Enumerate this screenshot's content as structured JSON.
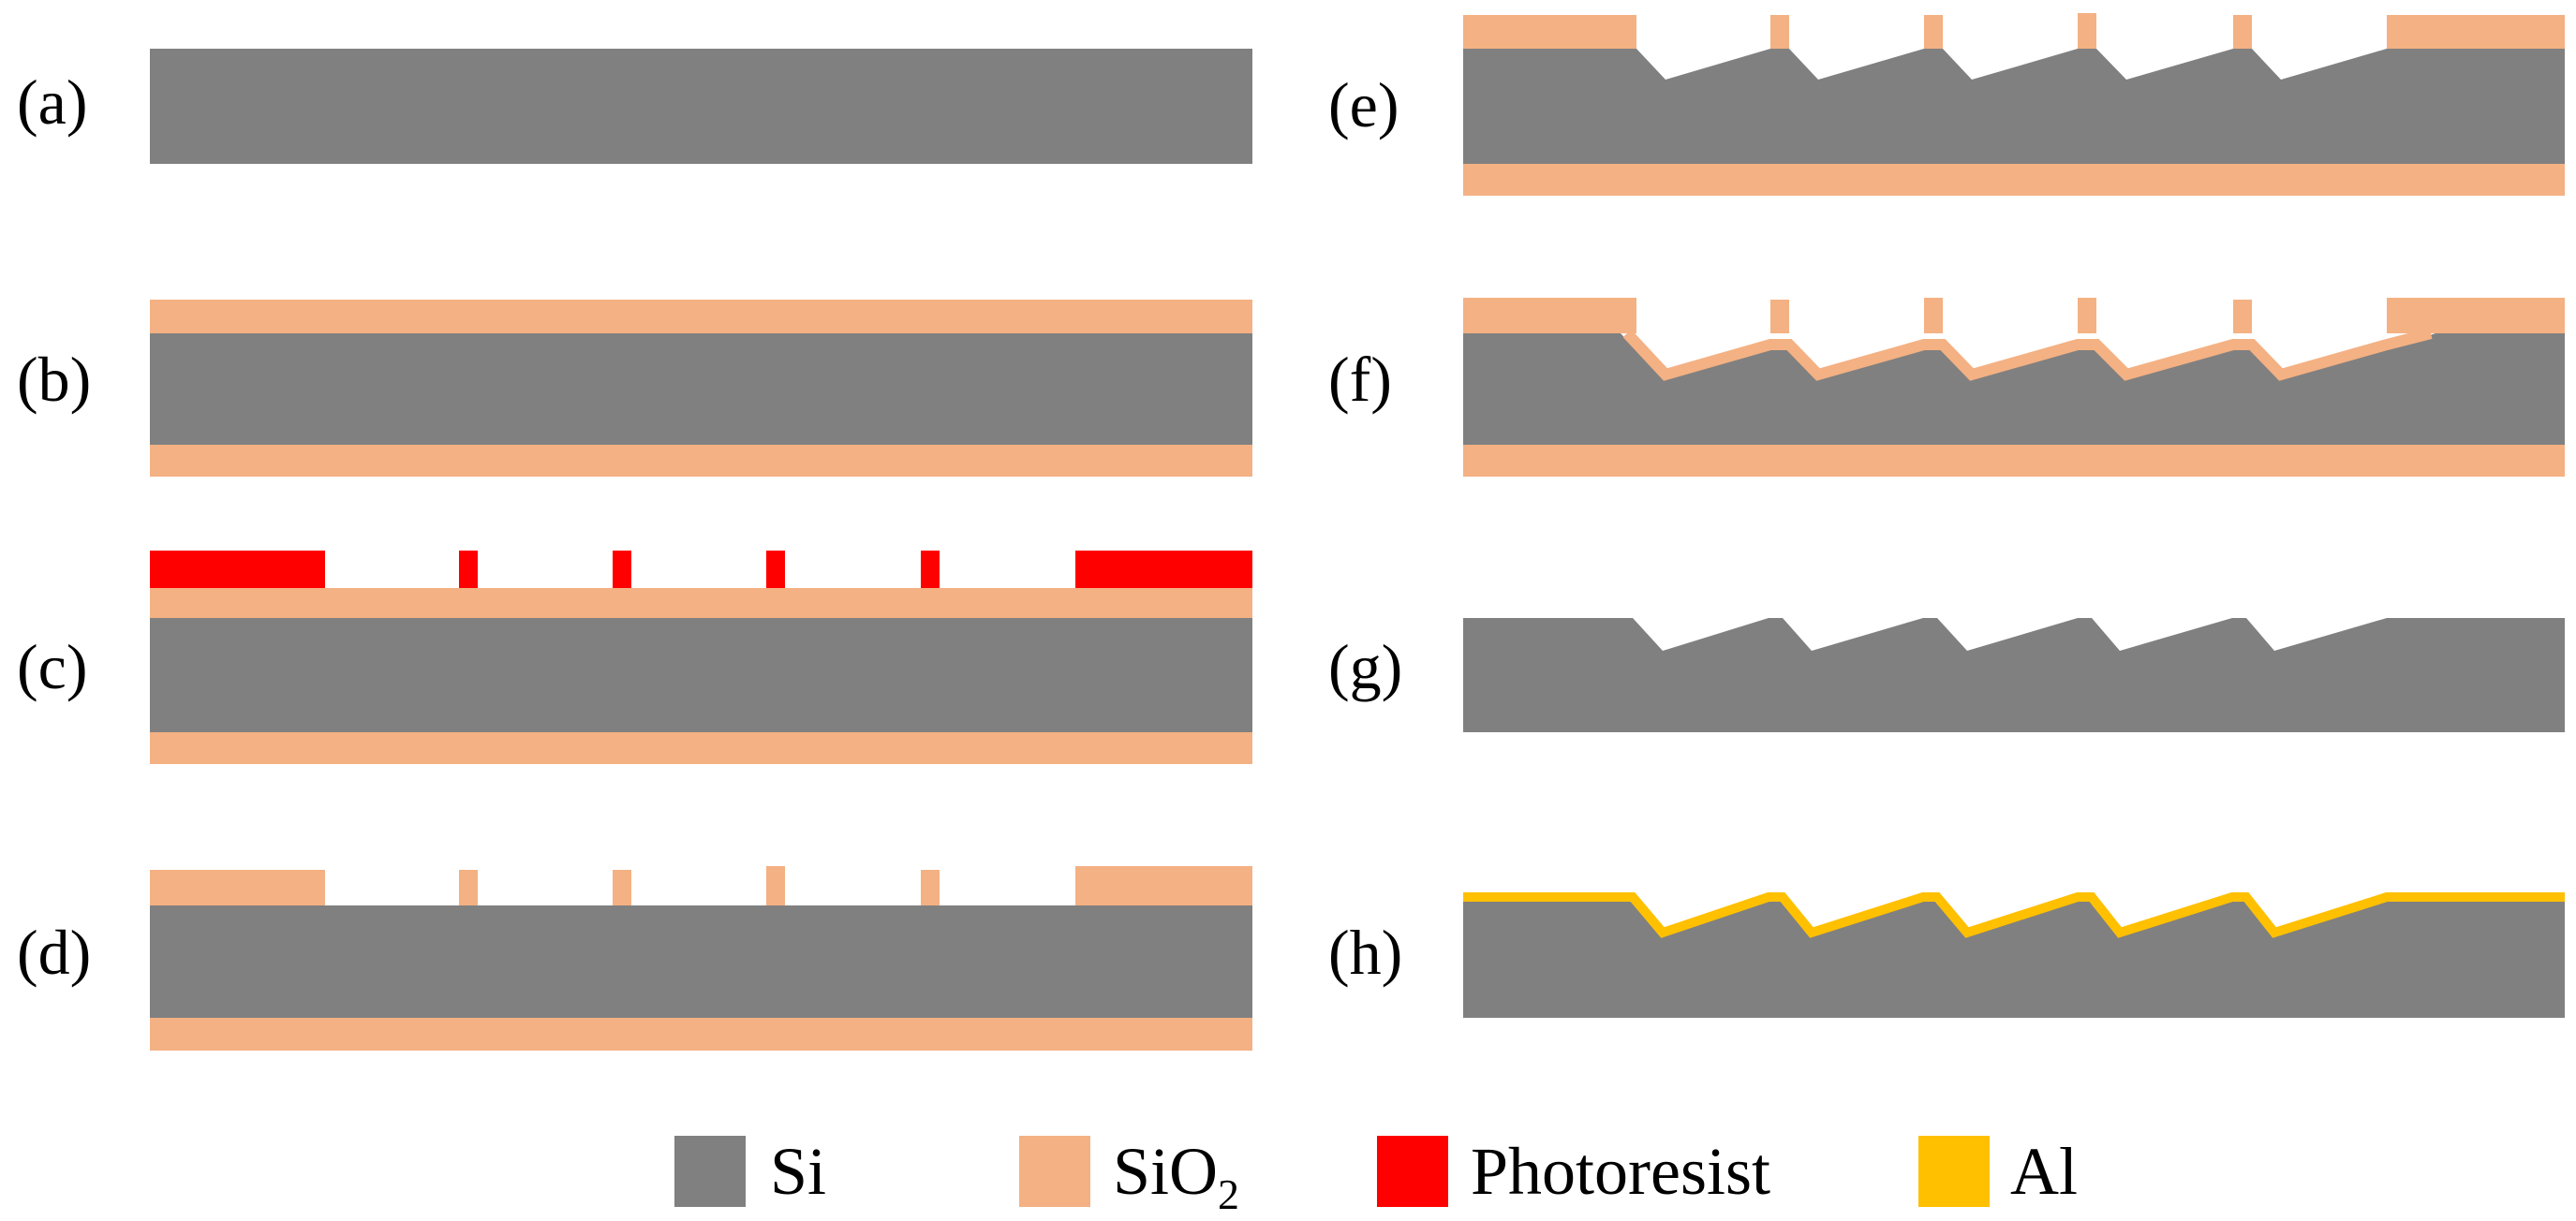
{
  "figure": {
    "description_text": null
  },
  "panels": [
    {
      "id": "a",
      "label": "(a)"
    },
    {
      "id": "b",
      "label": "(b)"
    },
    {
      "id": "c",
      "label": "(c)"
    },
    {
      "id": "d",
      "label": "(d)"
    },
    {
      "id": "e",
      "label": "(e)"
    },
    {
      "id": "f",
      "label": "(f)"
    },
    {
      "id": "g",
      "label": "(g)"
    },
    {
      "id": "h",
      "label": "(h)"
    }
  ],
  "legend": {
    "items": [
      {
        "material": "Si",
        "label": "Si",
        "subscript": "",
        "color": "#808080"
      },
      {
        "material": "SiO2",
        "label": "SiO",
        "subscript": "2",
        "color": "#F4B183"
      },
      {
        "material": "Photoresist",
        "label": "Photoresist",
        "subscript": "",
        "color": "#FF0000"
      },
      {
        "material": "Al",
        "label": "Al",
        "subscript": "",
        "color": "#FFC000"
      }
    ]
  },
  "colors": {
    "si": "#808080",
    "sio2": "#F4B183",
    "photoresist": "#FF0000",
    "al": "#FFC000",
    "background": "#FFFFFF"
  }
}
